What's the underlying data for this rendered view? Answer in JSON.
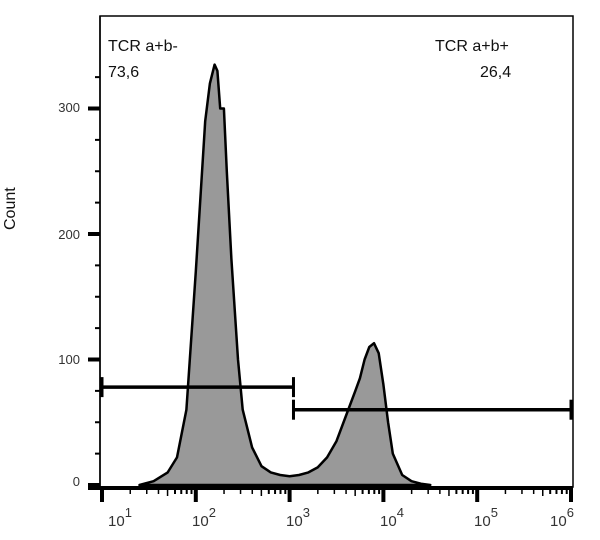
{
  "chart_data": {
    "type": "area",
    "title": "",
    "xlabel": "",
    "ylabel": "Count",
    "x_scale": "log",
    "xlim": [
      10,
      1000000
    ],
    "ylim": [
      0,
      350
    ],
    "x_ticks": [
      "10^1",
      "10^2",
      "10^3",
      "10^4",
      "10^5",
      "10^6"
    ],
    "y_ticks": [
      0,
      100,
      200,
      300
    ],
    "grid": false,
    "fill_color": "#999999",
    "line_color": "#000000",
    "series": [
      {
        "name": "Histogram",
        "log10_x": [
          1.4,
          1.55,
          1.7,
          1.8,
          1.9,
          2.0,
          2.05,
          2.1,
          2.15,
          2.2,
          2.23,
          2.26,
          2.3,
          2.33,
          2.38,
          2.45,
          2.5,
          2.6,
          2.7,
          2.8,
          2.9,
          3.0,
          3.1,
          3.2,
          3.3,
          3.4,
          3.5,
          3.6,
          3.7,
          3.75,
          3.8,
          3.85,
          3.9,
          3.95,
          4.0,
          4.05,
          4.1,
          4.2,
          4.3,
          4.4,
          4.5
        ],
        "values": [
          0,
          3,
          10,
          22,
          60,
          170,
          230,
          290,
          320,
          335,
          330,
          300,
          300,
          250,
          180,
          100,
          60,
          30,
          15,
          10,
          8,
          7,
          8,
          10,
          14,
          22,
          35,
          55,
          75,
          85,
          100,
          110,
          113,
          105,
          80,
          50,
          25,
          8,
          3,
          1,
          0
        ]
      }
    ],
    "gates": [
      {
        "name": "TCR a+b-",
        "percent": "73,6",
        "x_start": 10,
        "x_end": 1100,
        "y_level": 78
      },
      {
        "name": "TCR a+b+",
        "percent": "26,4",
        "x_start": 1100,
        "x_end": 1000000,
        "y_level": 60
      }
    ],
    "annotations": [
      {
        "text": "TCR a+b-",
        "position": "top-left"
      },
      {
        "text": "73,6",
        "position": "top-left"
      },
      {
        "text": "TCR a+b+",
        "position": "top-right"
      },
      {
        "text": "26,4",
        "position": "top-right"
      }
    ]
  },
  "labels": {
    "gate_left_name": "TCR a+b-",
    "gate_left_pct": "73,6",
    "gate_right_name": "TCR a+b+",
    "gate_right_pct": "26,4",
    "ylabel": "Count",
    "y_ticks": [
      "300",
      "200",
      "100",
      "0"
    ],
    "x_tick_base": "10",
    "x_tick_exps": [
      "1",
      "2",
      "3",
      "4",
      "5",
      "6"
    ]
  }
}
